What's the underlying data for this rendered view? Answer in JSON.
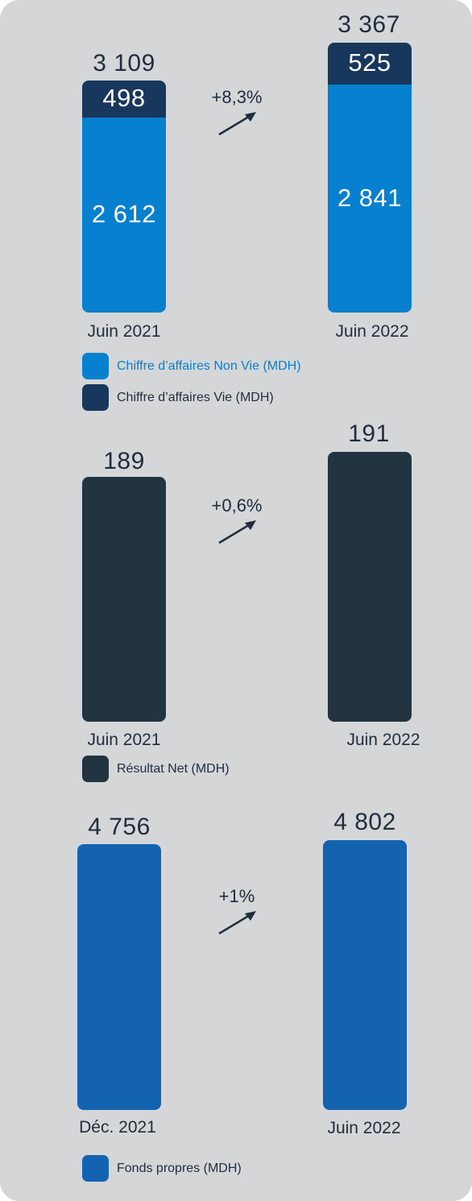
{
  "chart_data": [
    {
      "type": "bar",
      "stacked": true,
      "categories": [
        "Juin 2021",
        "Juin 2022"
      ],
      "series": [
        {
          "name": "Chiffre d'affaires Non Vie (MDH)",
          "values": [
            2612,
            2841
          ],
          "value_labels": [
            "2 612",
            "2 841"
          ],
          "color": "#0780cf"
        },
        {
          "name": "Chiffre d'affaires Vie (MDH)",
          "values": [
            498,
            525
          ],
          "value_labels": [
            "498",
            "525"
          ],
          "color": "#17375d"
        }
      ],
      "totals": [
        3109,
        3367
      ],
      "total_labels": [
        "3 109",
        "3 367"
      ],
      "change_label": "+8,3%",
      "legend": [
        {
          "label": "Chiffre d’affaires Non Vie (MDH)",
          "color": "#0780cf",
          "text_color": "#0780cf"
        },
        {
          "label": "Chiffre d’affaires Vie (MDH)",
          "color": "#17375d",
          "text_color": "#1f2d3d"
        }
      ],
      "ylim": [
        0,
        3400
      ]
    },
    {
      "type": "bar",
      "categories": [
        "Juin 2021",
        "Juin 2022"
      ],
      "series": [
        {
          "name": "Résultat Net (MDH)",
          "values": [
            189,
            191
          ],
          "value_labels": [
            "189",
            "191"
          ],
          "color": "#22343f"
        }
      ],
      "change_label": "+0,6%",
      "legend": [
        {
          "label": "Résultat Net (MDH)",
          "color": "#22343f",
          "text_color": "#1f2d3d"
        }
      ],
      "ylim": [
        0,
        191
      ]
    },
    {
      "type": "bar",
      "categories": [
        "Déc. 2021",
        "Juin 2022"
      ],
      "series": [
        {
          "name": "Fonds propres (MDH)",
          "values": [
            4756,
            4802
          ],
          "value_labels": [
            "4 756",
            "4 802"
          ],
          "color": "#1463b1"
        }
      ],
      "change_label": "+1%",
      "legend": [
        {
          "label": "Fonds propres (MDH)",
          "color": "#1463b1",
          "text_color": "#1f2d3d"
        }
      ],
      "ylim": [
        0,
        4802
      ]
    }
  ]
}
